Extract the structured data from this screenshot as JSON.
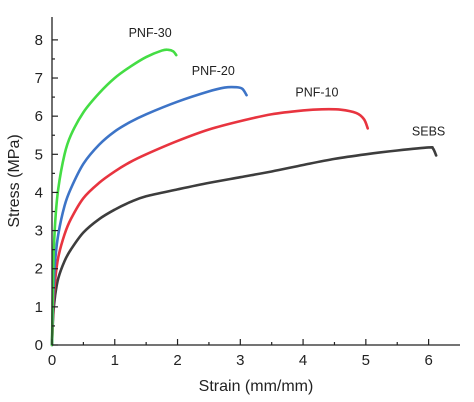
{
  "chart_data": {
    "type": "line",
    "title": "",
    "xlabel": "Strain (mm/mm)",
    "ylabel": "Stress (MPa)",
    "xlim": [
      0,
      6.5
    ],
    "ylim": [
      0,
      8.6
    ],
    "xticks": [
      0,
      1,
      2,
      3,
      4,
      5,
      6
    ],
    "yticks": [
      0,
      1,
      2,
      3,
      4,
      5,
      6,
      7,
      8
    ],
    "grid": false,
    "legend": "none (inline labels next to each curve)",
    "series": [
      {
        "name": "SEBS",
        "color": "#3d3d3d",
        "x": [
          0,
          0.02,
          0.05,
          0.1,
          0.2,
          0.3,
          0.5,
          0.75,
          1.0,
          1.25,
          1.5,
          2.0,
          2.5,
          3.0,
          3.5,
          4.0,
          4.5,
          5.0,
          5.5,
          6.0,
          6.07,
          6.12
        ],
        "y": [
          0,
          0.8,
          1.3,
          1.75,
          2.2,
          2.5,
          2.95,
          3.3,
          3.55,
          3.75,
          3.9,
          4.08,
          4.25,
          4.4,
          4.55,
          4.72,
          4.88,
          5.0,
          5.1,
          5.18,
          5.15,
          4.97
        ]
      },
      {
        "name": "PNF-10",
        "color": "#e8343f",
        "x": [
          0,
          0.02,
          0.05,
          0.1,
          0.2,
          0.3,
          0.5,
          0.75,
          1.0,
          1.25,
          1.5,
          2.0,
          2.5,
          3.0,
          3.5,
          4.0,
          4.3,
          4.6,
          4.85,
          4.97,
          5.03
        ],
        "y": [
          0,
          1.0,
          1.7,
          2.3,
          2.9,
          3.3,
          3.85,
          4.25,
          4.55,
          4.8,
          5.0,
          5.35,
          5.65,
          5.87,
          6.05,
          6.15,
          6.18,
          6.17,
          6.08,
          5.92,
          5.68
        ]
      },
      {
        "name": "PNF-20",
        "color": "#3d74c7",
        "x": [
          0,
          0.02,
          0.05,
          0.1,
          0.2,
          0.3,
          0.5,
          0.75,
          1.0,
          1.25,
          1.5,
          2.0,
          2.5,
          2.75,
          2.92,
          3.03,
          3.1
        ],
        "y": [
          0,
          1.3,
          2.2,
          2.9,
          3.65,
          4.1,
          4.75,
          5.25,
          5.6,
          5.85,
          6.05,
          6.38,
          6.65,
          6.75,
          6.76,
          6.72,
          6.55
        ]
      },
      {
        "name": "PNF-30",
        "color": "#44dd44",
        "x": [
          0,
          0.02,
          0.05,
          0.1,
          0.2,
          0.3,
          0.5,
          0.75,
          1.0,
          1.25,
          1.5,
          1.75,
          1.85,
          1.93,
          1.98
        ],
        "y": [
          0,
          2.0,
          3.2,
          4.1,
          5.0,
          5.5,
          6.1,
          6.6,
          7.0,
          7.3,
          7.55,
          7.72,
          7.74,
          7.7,
          7.6
        ]
      }
    ]
  }
}
